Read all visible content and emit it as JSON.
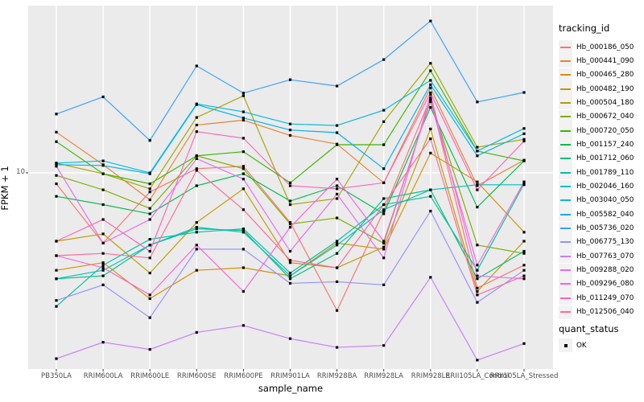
{
  "chart_data": {
    "type": "line",
    "title": "",
    "xlabel": "sample_name",
    "ylabel": "FPKM + 1",
    "y_scale": "log10",
    "y_tick_labels": [
      "10"
    ],
    "y_tick_values": [
      10
    ],
    "ylim": [
      1,
      70
    ],
    "grid": "vertical-major-on",
    "legend_position": "right",
    "legend_title": "tracking_id",
    "quant_legend": {
      "title": "quant_status",
      "items": [
        {
          "label": "OK",
          "marker": "black-square"
        }
      ]
    },
    "categories": [
      "PB350LA",
      "RRIM600LA",
      "RRIM600LE",
      "RRIM600SE",
      "RRIM600PE",
      "RRIM901LA",
      "RRIM928BA",
      "RRIM928LA",
      "RRIM928LE",
      "RRII105LA_Control",
      "RRII105LA_Stressed"
    ],
    "series": [
      {
        "name": "Hb_000186_050",
        "color": "#F8766D",
        "values": [
          8.8,
          4.4,
          8.0,
          10.5,
          10.8,
          5.6,
          2.0,
          6.4,
          24.0,
          2.6,
          3.4
        ]
      },
      {
        "name": "Hb_000441_090",
        "color": "#EA8331",
        "values": [
          16.1,
          11.0,
          7.3,
          17.5,
          18.5,
          15.5,
          14.0,
          8.9,
          27.0,
          8.6,
          11.6
        ]
      },
      {
        "name": "Hb_000465_280",
        "color": "#D89000",
        "values": [
          3.2,
          3.5,
          2.3,
          3.2,
          3.3,
          3.0,
          4.4,
          4.1,
          12.6,
          9.0,
          5.0
        ]
      },
      {
        "name": "Hb_000482_190",
        "color": "#C09B00",
        "values": [
          4.5,
          4.9,
          3.1,
          5.6,
          8.3,
          3.5,
          3.3,
          4.2,
          16.7,
          2.5,
          4.5
        ]
      },
      {
        "name": "Hb_000504_180",
        "color": "#A3A500",
        "values": [
          11.2,
          9.9,
          8.3,
          19.1,
          24.6,
          6.9,
          7.4,
          18.2,
          36.0,
          13.5,
          14.8
        ]
      },
      {
        "name": "Hb_000672_040",
        "color": "#7CAE00",
        "values": [
          9.7,
          8.2,
          6.6,
          12.2,
          10.5,
          5.5,
          5.9,
          4.4,
          23.4,
          4.3,
          3.9
        ]
      },
      {
        "name": "Hb_000720_050",
        "color": "#39B600",
        "values": [
          14.4,
          9.9,
          8.8,
          12.2,
          12.8,
          8.9,
          13.9,
          13.9,
          33.0,
          12.9,
          11.5
        ]
      },
      {
        "name": "Hb_001157_240",
        "color": "#00BB4E",
        "values": [
          7.6,
          6.9,
          6.2,
          8.6,
          9.9,
          7.2,
          8.6,
          6.2,
          21.5,
          6.7,
          11.5
        ]
      },
      {
        "name": "Hb_001712_060",
        "color": "#00BF7D",
        "values": [
          2.9,
          3.0,
          4.3,
          5.2,
          5.1,
          2.9,
          3.9,
          7.4,
          8.2,
          2.9,
          4.0
        ]
      },
      {
        "name": "Hb_001789_110",
        "color": "#00C1A3",
        "values": [
          2.1,
          3.4,
          4.6,
          5.0,
          5.2,
          3.1,
          4.5,
          6.9,
          7.6,
          3.2,
          8.8
        ]
      },
      {
        "name": "Hb_002046_160",
        "color": "#00BFC4",
        "values": [
          2.9,
          3.2,
          4.3,
          5.3,
          5.0,
          3.0,
          4.3,
          6.5,
          8.2,
          8.7,
          8.7
        ]
      },
      {
        "name": "Hb_003040_050",
        "color": "#00BAE0",
        "values": [
          11.2,
          11.5,
          10.0,
          22.4,
          20.4,
          17.7,
          17.4,
          20.8,
          29.5,
          12.9,
          16.8
        ]
      },
      {
        "name": "Hb_005582_040",
        "color": "#00B0F6",
        "values": [
          11.0,
          10.9,
          9.9,
          22.2,
          19.0,
          16.5,
          16.0,
          10.5,
          28.0,
          12.2,
          15.8
        ]
      },
      {
        "name": "Hb_005736_020",
        "color": "#35A2FF",
        "values": [
          19.9,
          24.3,
          14.6,
          34.9,
          25.4,
          29.7,
          27.6,
          37.6,
          59.0,
          22.9,
          25.6
        ]
      },
      {
        "name": "Hb_006775_130",
        "color": "#9590FF",
        "values": [
          2.25,
          2.7,
          1.84,
          4.1,
          4.1,
          2.75,
          2.8,
          2.7,
          6.4,
          2.2,
          3.2
        ]
      },
      {
        "name": "Hb_007763_070",
        "color": "#C77CFF",
        "values": [
          1.14,
          1.38,
          1.27,
          1.55,
          1.68,
          1.44,
          1.3,
          1.33,
          2.95,
          1.12,
          1.36
        ]
      },
      {
        "name": "Hb_009288_020",
        "color": "#E76BF3",
        "values": [
          10.8,
          4.4,
          5.8,
          11.8,
          9.3,
          4.0,
          7.8,
          3.7,
          25.0,
          3.0,
          2.9
        ]
      },
      {
        "name": "Hb_009296_080",
        "color": "#FA62DB",
        "values": [
          3.8,
          3.3,
          2.4,
          4.3,
          2.5,
          5.3,
          9.3,
          4.5,
          23.0,
          3.4,
          9.0
        ]
      },
      {
        "name": "Hb_011249_070",
        "color": "#FF62BC",
        "values": [
          4.5,
          5.8,
          4.0,
          16.2,
          15.0,
          8.6,
          8.3,
          8.9,
          25.5,
          8.2,
          14.5
        ]
      },
      {
        "name": "Hb_012506_040",
        "color": "#FF6A98",
        "values": [
          3.8,
          3.9,
          3.7,
          10.3,
          6.5,
          3.6,
          3.3,
          6.9,
          14.9,
          2.4,
          3.0
        ]
      }
    ],
    "colors": {
      "panel_bg": "#EBEBEB",
      "gridline": "#FFFFFF",
      "tick_mark": "#333333",
      "tick_label": "#4D4D4D",
      "text": "#000000",
      "legend_key_bg": "#F2F2F2",
      "marker": "#000000"
    }
  }
}
